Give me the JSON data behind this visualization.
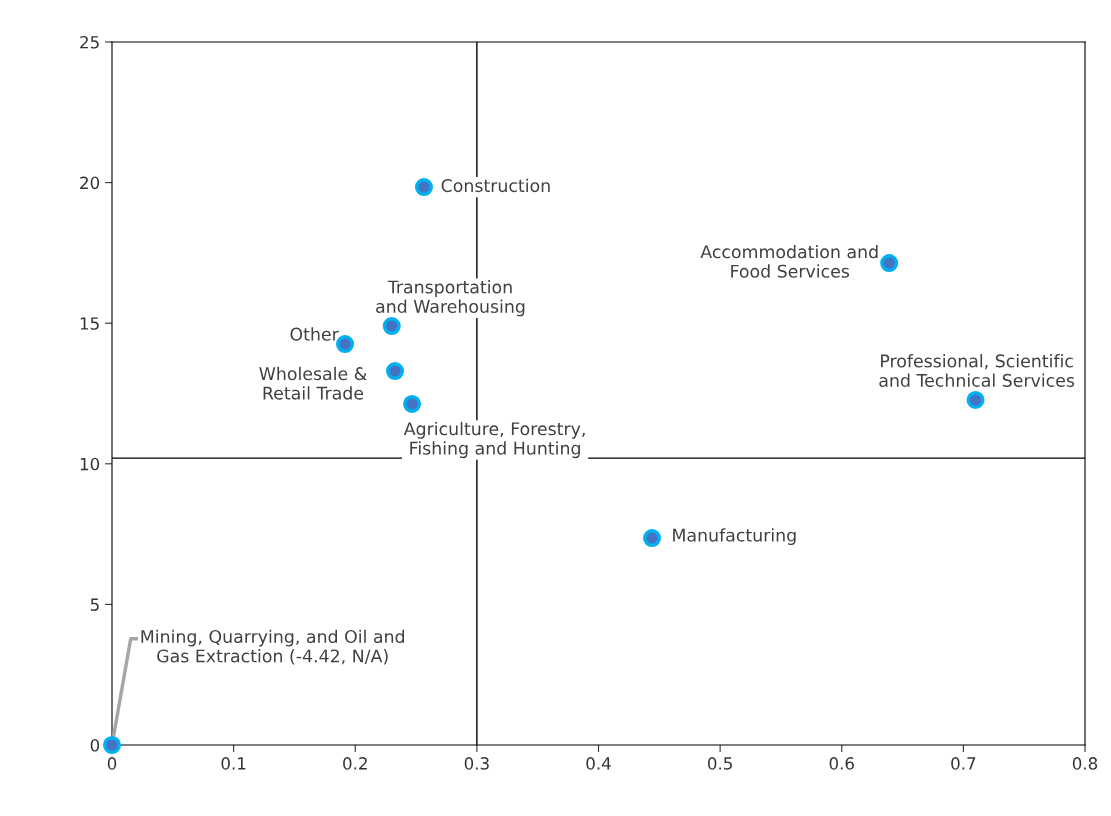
{
  "chart_data": {
    "type": "scatter",
    "x": [
      0.2565,
      0.639,
      0.23,
      0.1916,
      0.2327,
      0.2467,
      0.71,
      0.444,
      0
    ],
    "series": [
      {
        "color": "#4472c4",
        "values": [
          19.84,
          17.14,
          14.9,
          14.26,
          13.3,
          12.13,
          12.27,
          7.36,
          0
        ]
      }
    ],
    "marker": "circle",
    "grid": false,
    "legend": false,
    "xlim": [
      0,
      0.8
    ],
    "xticks": [
      0,
      0.1,
      0.2,
      0.3,
      0.4,
      0.5,
      0.6,
      0.7,
      0.8
    ],
    "ylim": [
      0,
      25
    ],
    "yticks": [
      0,
      5,
      10,
      15,
      20,
      25
    ],
    "ref_lines": [
      {
        "axis": "x",
        "value": 0.3,
        "color": "#000000"
      },
      {
        "axis": "y",
        "value": 10.2,
        "color": "#000000"
      }
    ],
    "annotations": [
      {
        "text": "Construction",
        "x": 0.2565,
        "y": 19.84
      },
      {
        "text": "Accommodation and\nFood Services",
        "x": 0.639,
        "y": 17.14
      },
      {
        "text": "Transportation\nand Warehousing",
        "x": 0.23,
        "y": 14.9
      },
      {
        "text": "Other",
        "x": 0.1916,
        "y": 14.26
      },
      {
        "text": "Wholesale &\nRetail Trade",
        "x": 0.2327,
        "y": 13.3
      },
      {
        "text": "Agriculture, Forestry,\nFishing and Hunting",
        "x": 0.2467,
        "y": 12.13
      },
      {
        "text": "Professional, Scientific\nand Technical Services",
        "x": 0.71,
        "y": 12.27
      },
      {
        "text": "Manufacturing",
        "x": 0.444,
        "y": 7.36
      },
      {
        "text": "Mining, Quarrying, and Oil and\nGas Extraction (-4.42, N/A)",
        "x": 0,
        "y": 0
      }
    ]
  }
}
